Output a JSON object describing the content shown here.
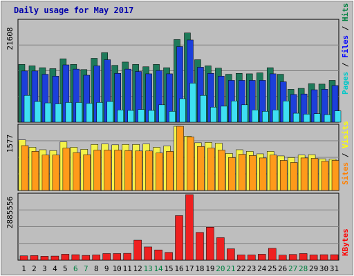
{
  "chart_data": {
    "type": "bar",
    "title": "Daily usage for May 2017",
    "categories": [
      "1",
      "2",
      "3",
      "4",
      "5",
      "6",
      "7",
      "8",
      "9",
      "10",
      "11",
      "12",
      "13",
      "14",
      "15",
      "16",
      "17",
      "18",
      "19",
      "20",
      "21",
      "22",
      "23",
      "24",
      "25",
      "26",
      "27",
      "28",
      "29",
      "30",
      "31"
    ],
    "weekend_days": [
      6,
      7,
      13,
      14,
      20,
      21,
      27,
      28
    ],
    "panels": [
      {
        "name": "traffic",
        "max_label": "21608",
        "ylim": [
          0,
          21608
        ],
        "legend": [
          {
            "text": "Pages",
            "color": "#00c8c8"
          },
          {
            "text": "Files",
            "color": "#0000ff"
          },
          {
            "text": "Hits",
            "color": "#008040"
          }
        ],
        "series": [
          {
            "name": "Hits",
            "color": "#1e7a5a",
            "values": [
              12300,
              12000,
              11600,
              11400,
              13500,
              12300,
              11200,
              13600,
              14800,
              12100,
              12800,
              12300,
              11800,
              12300,
              11600,
              17600,
              19000,
              13300,
              12000,
              11500,
              10200,
              10400,
              10300,
              10500,
              11600,
              10200,
              7000,
              7200,
              8200,
              8100,
              8900
            ]
          },
          {
            "name": "Files",
            "color": "#1c3fdb",
            "values": [
              10900,
              10900,
              10200,
              9800,
              12200,
              11300,
              10000,
              12000,
              13300,
              10400,
              11300,
              10800,
              10300,
              11000,
              10300,
              16100,
              17500,
              11700,
              10400,
              9800,
              8900,
              8900,
              8900,
              8900,
              10300,
              8600,
              5900,
              6000,
              6900,
              7000,
              7800
            ]
          },
          {
            "name": "Pages",
            "color": "#3ee0f2",
            "values": [
              5700,
              4400,
              4100,
              3900,
              4200,
              4200,
              4000,
              4200,
              4400,
              2600,
              2500,
              2700,
              2500,
              3700,
              2300,
              5000,
              8300,
              5700,
              3200,
              3400,
              4500,
              3700,
              2600,
              2300,
              2600,
              4500,
              1900,
              1700,
              1800,
              1600,
              2400
            ]
          }
        ]
      },
      {
        "name": "visitors",
        "max_label": "1577",
        "ylim": [
          0,
          1577
        ],
        "legend": [
          {
            "text": "Sites",
            "color": "#ff8000"
          },
          {
            "text": "Visits",
            "color": "#ffff00"
          }
        ],
        "series": [
          {
            "name": "Visits",
            "color": "#f4f24a",
            "values": [
              1230,
              1050,
              990,
              970,
              1180,
              1050,
              1000,
              1120,
              1130,
              1110,
              1120,
              1120,
              1130,
              1050,
              1080,
              1560,
              1320,
              1160,
              1170,
              1150,
              900,
              990,
              950,
              890,
              950,
              840,
              800,
              860,
              870,
              770,
              760
            ]
          },
          {
            "name": "Sites",
            "color": "#ff9a1a",
            "values": [
              1090,
              950,
              860,
              860,
              1030,
              920,
              870,
              980,
              980,
              980,
              970,
              960,
              960,
              910,
              950,
              1560,
              1300,
              1070,
              1030,
              980,
              800,
              880,
              850,
              790,
              860,
              730,
              680,
              790,
              780,
              710,
              730
            ]
          }
        ]
      },
      {
        "name": "kbytes",
        "max_label": "2885556",
        "ylim": [
          0,
          2885556
        ],
        "legend": [
          {
            "text": "KBytes",
            "color": "#ff0000"
          }
        ],
        "series": [
          {
            "name": "KBytes",
            "color": "#ee2020",
            "values": [
              190000,
              200000,
              170000,
              180000,
              260000,
              240000,
              210000,
              230000,
              290000,
              290000,
              300000,
              880000,
              580000,
              450000,
              340000,
              1960000,
              2885556,
              1220000,
              1450000,
              990000,
              500000,
              230000,
              230000,
              260000,
              520000,
              220000,
              250000,
              290000,
              230000,
              240000,
              240000
            ]
          }
        ]
      }
    ],
    "colors": {
      "frame_bg": "#c0c0c0",
      "plot_bg": "#bebebe",
      "gridline": "#808080",
      "title": "#0000aa",
      "weekday_label": "#000000",
      "weekend_label": "#008040"
    }
  }
}
